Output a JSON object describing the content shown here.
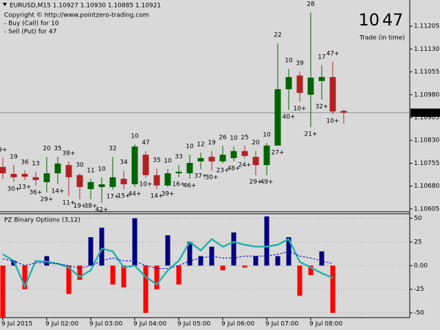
{
  "chart_data": [
    {
      "type": "candlestick",
      "title": "EURUSD,M15  1.10927 1.10930 1.10885 1.10921",
      "notes": [
        "Copyright © http://www.pointzero-trading.com",
        "- Buy (Call) for 10",
        "- Sell (Put) for 47"
      ],
      "buy_count": 10,
      "sell_count": 47,
      "counter_label": "Trade (in time)",
      "categories": [
        "9 Jul 2015",
        null,
        null,
        null,
        "9 Jul 02:00",
        null,
        null,
        null,
        "9 Jul 03:00",
        null,
        null,
        null,
        "9 Jul 04:00",
        null,
        null,
        null,
        "9 Jul 05:00",
        null,
        null,
        null,
        "9 Jul 06:00",
        null,
        null,
        null,
        "9 Jul 07:00",
        null,
        null,
        null,
        "9 Jul 08:00",
        null,
        null,
        null
      ],
      "open": [
        1.10743,
        1.1072,
        1.1072,
        1.10709,
        1.10693,
        1.10722,
        1.10749,
        1.10716,
        1.1067,
        1.10677,
        1.10677,
        1.10704,
        1.10686,
        1.10783,
        1.10716,
        1.10682,
        1.10722,
        1.10722,
        1.10761,
        1.10776,
        1.10761,
        1.10772,
        1.10795,
        1.10776,
        1.10749,
        1.10813,
        1.10998,
        1.11043,
        1.1098,
        1.11025,
        1.11038,
        1.10927
      ],
      "high": [
        1.10772,
        1.10749,
        1.10731,
        1.10727,
        1.10776,
        1.10776,
        1.10761,
        1.10722,
        1.10704,
        1.10709,
        1.10776,
        1.10731,
        1.10817,
        1.10795,
        1.10738,
        1.10736,
        1.10749,
        1.10783,
        1.1079,
        1.10795,
        1.10813,
        1.1081,
        1.10813,
        1.10795,
        1.10822,
        1.11149,
        1.11065,
        1.11056,
        1.1125,
        1.11077,
        1.11088,
        1.1093
      ],
      "low": [
        1.10704,
        1.10693,
        1.107,
        1.10682,
        1.10659,
        1.10686,
        1.10648,
        1.10637,
        1.10637,
        1.10625,
        1.10668,
        1.1067,
        1.10677,
        1.10709,
        1.1067,
        1.10677,
        1.10709,
        1.10704,
        1.10736,
        1.10731,
        1.10754,
        1.10761,
        1.10772,
        1.10716,
        1.10716,
        1.10813,
        1.1093,
        1.10957,
        1.10873,
        1.10964,
        1.10916,
        1.10885
      ],
      "close": [
        1.10722,
        1.10709,
        1.10711,
        1.107,
        1.10722,
        1.10754,
        1.10709,
        1.10677,
        1.10693,
        1.10686,
        1.10709,
        1.10686,
        1.1081,
        1.10716,
        1.10682,
        1.10722,
        1.10727,
        1.10756,
        1.10772,
        1.10761,
        1.10783,
        1.10795,
        1.10779,
        1.10749,
        1.10813,
        1.10998,
        1.11038,
        1.10986,
        1.11036,
        1.11038,
        1.10925,
        1.10921
      ],
      "up_color": "#006400",
      "down_color": "#b22222",
      "top_labels": [
        "9+",
        "19",
        "36",
        "13",
        "20",
        "35",
        "38+",
        "30",
        "11",
        "10",
        "32",
        "34",
        "10",
        "47",
        "35",
        "10",
        "33",
        "10",
        "12",
        "19",
        "26",
        "10",
        "25",
        "20",
        "10",
        "22",
        "10",
        "39",
        "28",
        "17",
        "47+",
        null
      ],
      "bottom_labels": [
        null,
        "30+",
        "13+",
        "36+",
        "29+",
        "14+",
        "11+",
        "19+",
        "38+",
        "42+",
        "17+",
        "15+",
        "44+",
        "10+",
        "14+",
        "39+",
        "16+",
        "46+",
        "37+",
        "30+",
        "23+",
        "48+",
        "24+",
        "29+",
        "49+",
        "27+",
        "40+",
        "10+",
        "21+",
        "32+",
        "10+",
        null
      ],
      "top_label_color": "#ff0000",
      "bottom_label_color": "#000080",
      "last_price": 1.10921,
      "ylim": [
        1.10598,
        1.11291
      ],
      "yticks": [
        1.10605,
        {
          "value": 1.1068,
          "label": "1.10680"
        },
        1.10755,
        {
          "value": 1.1083,
          "label": "1.10830"
        },
        1.10905,
        {
          "value": 1.1098,
          "label": "1.10980"
        },
        1.11055,
        {
          "value": 1.1113,
          "label": "1.11130"
        },
        1.11205
      ]
    },
    {
      "type": "histogram",
      "title": "PZ Binary Options (3,12)",
      "values": [
        -55,
        5,
        -25,
        null,
        10,
        null,
        -30,
        -15,
        30,
        40,
        -20,
        -23,
        50,
        -50,
        -25,
        32,
        -20,
        25,
        10,
        20,
        -5,
        35,
        -2,
        10,
        52,
        10,
        30,
        -32,
        -10,
        15,
        -50,
        null
      ],
      "up_color": "#000080",
      "down_color": "#ff0000",
      "lines": [
        {
          "color": "#20b2aa",
          "dashed": false,
          "values": [
            12,
            5,
            -22,
            5,
            4,
            2,
            -2,
            -12,
            -5,
            18,
            15,
            -2,
            0,
            -12,
            -20,
            -5,
            5,
            25,
            16,
            28,
            20,
            25,
            22,
            20,
            20,
            22,
            28,
            4,
            -2,
            -8,
            -13,
            null
          ]
        },
        {
          "color": "#0000cd",
          "dashed": true,
          "values": [
            7,
            5,
            0,
            3,
            3,
            2,
            0,
            -3,
            0,
            5,
            8,
            5,
            5,
            0,
            -3,
            -3,
            0,
            5,
            8,
            10,
            8,
            8,
            10,
            10,
            10,
            12,
            15,
            10,
            8,
            5,
            2,
            null
          ]
        }
      ],
      "ylim": [
        -55,
        54
      ],
      "yticks": [
        50,
        25,
        {
          "value": 0,
          "label": "0.00"
        },
        -25,
        -50
      ]
    }
  ]
}
